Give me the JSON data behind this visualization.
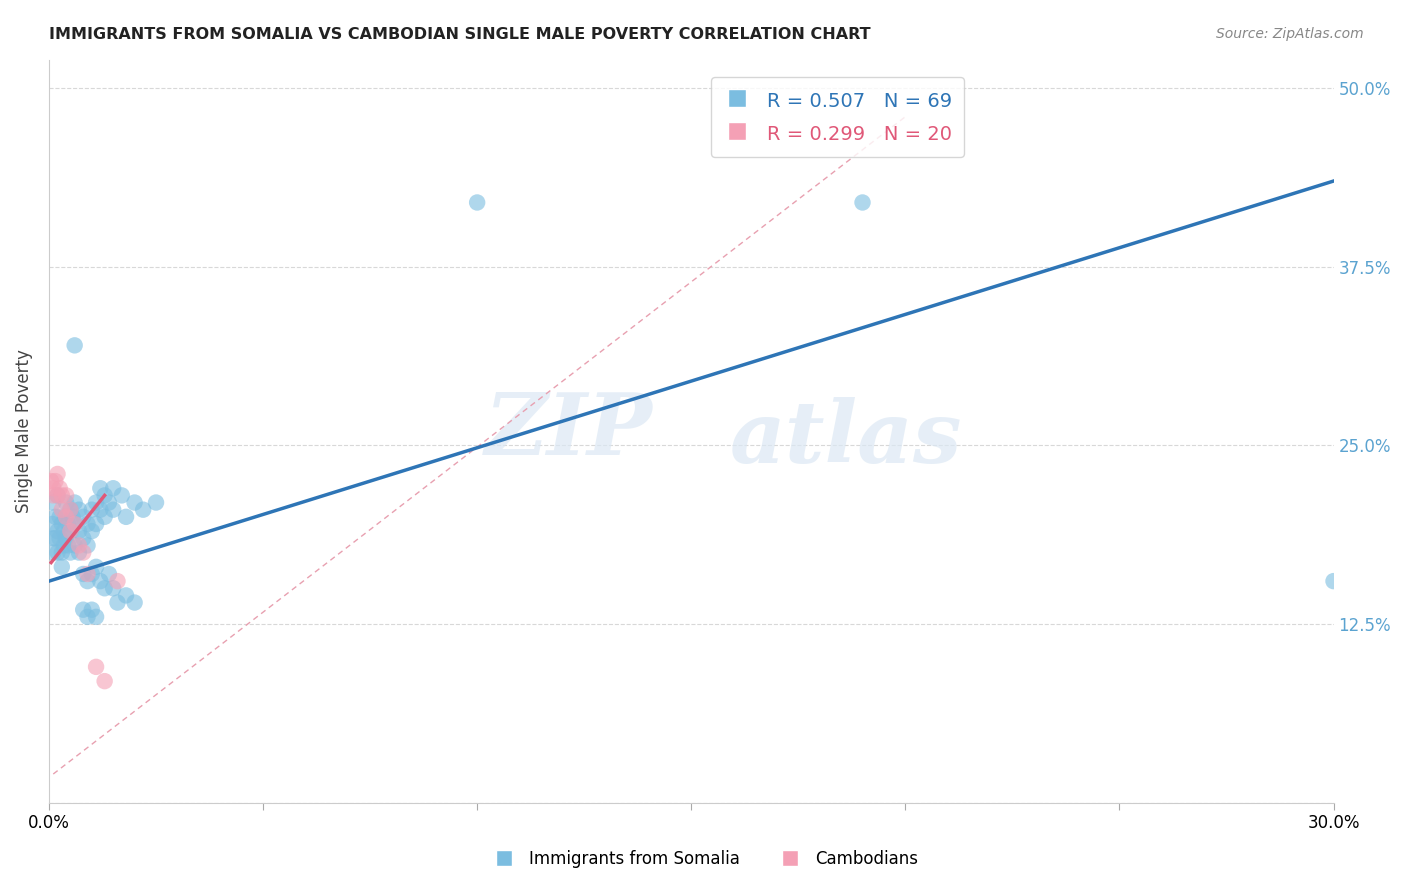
{
  "title": "IMMIGRANTS FROM SOMALIA VS CAMBODIAN SINGLE MALE POVERTY CORRELATION CHART",
  "source": "Source: ZipAtlas.com",
  "ylabel": "Single Male Poverty",
  "somalia_color": "#7bbde0",
  "cambodian_color": "#f4a0b5",
  "somalia_line_color": "#2e75b6",
  "cambodian_line_color": "#e05878",
  "diagonal_color": "#e8a0b0",
  "watermark_zip": "ZIP",
  "watermark_atlas": "atlas",
  "somalia_points": [
    [
      0.0008,
      0.195
    ],
    [
      0.001,
      0.21
    ],
    [
      0.001,
      0.185
    ],
    [
      0.001,
      0.175
    ],
    [
      0.0015,
      0.2
    ],
    [
      0.0015,
      0.185
    ],
    [
      0.002,
      0.215
    ],
    [
      0.002,
      0.19
    ],
    [
      0.002,
      0.175
    ],
    [
      0.0025,
      0.2
    ],
    [
      0.0025,
      0.185
    ],
    [
      0.003,
      0.195
    ],
    [
      0.003,
      0.175
    ],
    [
      0.003,
      0.165
    ],
    [
      0.0035,
      0.19
    ],
    [
      0.0035,
      0.18
    ],
    [
      0.004,
      0.21
    ],
    [
      0.004,
      0.2
    ],
    [
      0.004,
      0.185
    ],
    [
      0.0045,
      0.195
    ],
    [
      0.0045,
      0.18
    ],
    [
      0.005,
      0.205
    ],
    [
      0.005,
      0.19
    ],
    [
      0.005,
      0.175
    ],
    [
      0.0055,
      0.2
    ],
    [
      0.006,
      0.21
    ],
    [
      0.006,
      0.195
    ],
    [
      0.006,
      0.18
    ],
    [
      0.007,
      0.205
    ],
    [
      0.007,
      0.19
    ],
    [
      0.007,
      0.175
    ],
    [
      0.008,
      0.2
    ],
    [
      0.008,
      0.185
    ],
    [
      0.009,
      0.195
    ],
    [
      0.009,
      0.18
    ],
    [
      0.01,
      0.205
    ],
    [
      0.01,
      0.19
    ],
    [
      0.011,
      0.21
    ],
    [
      0.011,
      0.195
    ],
    [
      0.012,
      0.205
    ],
    [
      0.012,
      0.22
    ],
    [
      0.013,
      0.215
    ],
    [
      0.013,
      0.2
    ],
    [
      0.014,
      0.21
    ],
    [
      0.015,
      0.22
    ],
    [
      0.015,
      0.205
    ],
    [
      0.017,
      0.215
    ],
    [
      0.018,
      0.2
    ],
    [
      0.02,
      0.21
    ],
    [
      0.022,
      0.205
    ],
    [
      0.025,
      0.21
    ],
    [
      0.008,
      0.16
    ],
    [
      0.009,
      0.155
    ],
    [
      0.01,
      0.16
    ],
    [
      0.011,
      0.165
    ],
    [
      0.012,
      0.155
    ],
    [
      0.013,
      0.15
    ],
    [
      0.014,
      0.16
    ],
    [
      0.015,
      0.15
    ],
    [
      0.016,
      0.14
    ],
    [
      0.018,
      0.145
    ],
    [
      0.02,
      0.14
    ],
    [
      0.008,
      0.135
    ],
    [
      0.009,
      0.13
    ],
    [
      0.01,
      0.135
    ],
    [
      0.011,
      0.13
    ],
    [
      0.006,
      0.32
    ],
    [
      0.1,
      0.42
    ],
    [
      0.19,
      0.42
    ],
    [
      0.3,
      0.155
    ]
  ],
  "cambodian_points": [
    [
      0.0005,
      0.225
    ],
    [
      0.001,
      0.22
    ],
    [
      0.001,
      0.215
    ],
    [
      0.0015,
      0.225
    ],
    [
      0.002,
      0.23
    ],
    [
      0.002,
      0.215
    ],
    [
      0.0025,
      0.22
    ],
    [
      0.003,
      0.215
    ],
    [
      0.003,
      0.205
    ],
    [
      0.004,
      0.215
    ],
    [
      0.004,
      0.2
    ],
    [
      0.005,
      0.205
    ],
    [
      0.005,
      0.19
    ],
    [
      0.006,
      0.195
    ],
    [
      0.007,
      0.18
    ],
    [
      0.008,
      0.175
    ],
    [
      0.009,
      0.16
    ],
    [
      0.011,
      0.095
    ],
    [
      0.013,
      0.085
    ],
    [
      0.016,
      0.155
    ]
  ],
  "xlim": [
    0.0,
    0.3
  ],
  "ylim": [
    0.0,
    0.52
  ],
  "ytick_positions": [
    0.0,
    0.125,
    0.25,
    0.375,
    0.5
  ],
  "ytick_labels": [
    "",
    "12.5%",
    "25.0%",
    "37.5%",
    "50.0%"
  ],
  "background_color": "#ffffff",
  "grid_color": "#d8d8d8"
}
